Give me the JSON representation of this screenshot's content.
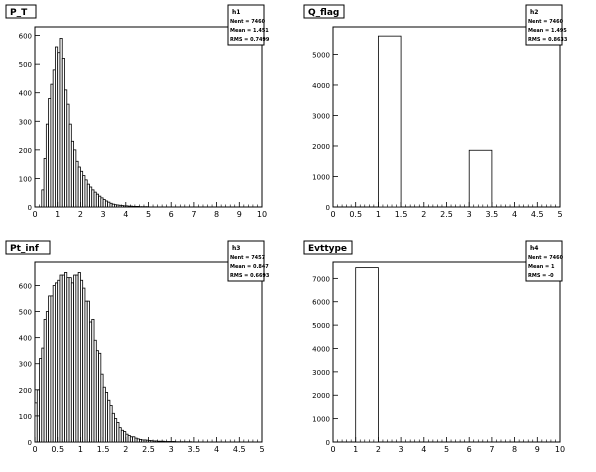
{
  "chart_data": [
    {
      "type": "bar",
      "histogram_style": "step",
      "title": "P_T",
      "xlim": [
        0,
        10
      ],
      "ylim": [
        0,
        630
      ],
      "x_tick_labels": [
        "0",
        "1",
        "2",
        "3",
        "4",
        "5",
        "6",
        "7",
        "8",
        "9",
        "10"
      ],
      "y_tick_labels": [
        "0",
        "100",
        "200",
        "300",
        "400",
        "500",
        "600"
      ],
      "stats": {
        "name": "h1",
        "entries_label": "Nent = 7460",
        "mean_label": "Mean = 1.451",
        "rms_label": "RMS = 0.7499"
      },
      "bin_width": 0.1,
      "x": [
        0.3,
        0.4,
        0.5,
        0.6,
        0.7,
        0.8,
        0.9,
        1.0,
        1.1,
        1.2,
        1.3,
        1.4,
        1.5,
        1.6,
        1.7,
        1.8,
        1.9,
        2.0,
        2.1,
        2.2,
        2.3,
        2.4,
        2.5,
        2.6,
        2.7,
        2.8,
        2.9,
        3.0,
        3.1,
        3.2,
        3.3,
        3.4,
        3.5,
        3.6,
        3.7,
        3.8,
        3.9,
        4.0,
        4.1,
        4.2,
        4.3,
        4.4,
        4.5,
        4.6,
        4.7,
        4.8,
        4.9
      ],
      "values": [
        60,
        170,
        290,
        380,
        430,
        480,
        560,
        540,
        590,
        520,
        410,
        360,
        290,
        230,
        200,
        160,
        140,
        125,
        110,
        95,
        80,
        70,
        60,
        52,
        45,
        38,
        32,
        26,
        21,
        17,
        13,
        10,
        8,
        7,
        6,
        5,
        4,
        4,
        3,
        3,
        2,
        2,
        2,
        1,
        1,
        1,
        1
      ]
    },
    {
      "type": "bar",
      "histogram_style": "step",
      "title": "Q_flag",
      "xlim": [
        0,
        5
      ],
      "ylim": [
        0,
        5900
      ],
      "x_tick_labels": [
        "0",
        "0.5",
        "1",
        "1.5",
        "2",
        "2.5",
        "3",
        "3.5",
        "4",
        "4.5",
        "5"
      ],
      "y_tick_labels": [
        "0",
        "1000",
        "2000",
        "3000",
        "4000",
        "5000"
      ],
      "stats": {
        "name": "h2",
        "entries_label": "Nent = 7460",
        "mean_label": "Mean = 1.495",
        "rms_label": "RMS = 0.8633"
      },
      "bin_width": 0.5,
      "x": [
        1.0,
        3.0
      ],
      "values": [
        5600,
        1860
      ]
    },
    {
      "type": "bar",
      "histogram_style": "step",
      "title": "Pt_inf",
      "xlim": [
        0,
        5
      ],
      "ylim": [
        0,
        690
      ],
      "x_tick_labels": [
        "0",
        "0.5",
        "1",
        "1.5",
        "2",
        "2.5",
        "3",
        "3.5",
        "4",
        "4.5",
        "5"
      ],
      "y_tick_labels": [
        "0",
        "100",
        "200",
        "300",
        "400",
        "500",
        "600"
      ],
      "stats": {
        "name": "h3",
        "entries_label": "Nent = 7457",
        "mean_label": "Mean = 0.847",
        "rms_label": "RMS = 0.6693"
      },
      "bin_width": 0.05,
      "x": [
        0.0,
        0.05,
        0.1,
        0.15,
        0.2,
        0.25,
        0.3,
        0.35,
        0.4,
        0.45,
        0.5,
        0.55,
        0.6,
        0.65,
        0.7,
        0.75,
        0.8,
        0.85,
        0.9,
        0.95,
        1.0,
        1.05,
        1.1,
        1.15,
        1.2,
        1.25,
        1.3,
        1.35,
        1.4,
        1.45,
        1.5,
        1.55,
        1.6,
        1.65,
        1.7,
        1.75,
        1.8,
        1.85,
        1.9,
        1.95,
        2.0,
        2.05,
        2.1,
        2.15,
        2.2,
        2.25,
        2.3,
        2.35,
        2.4,
        2.45,
        2.5,
        2.55,
        2.6,
        2.65,
        2.7,
        2.75,
        2.8,
        2.85,
        2.9,
        2.95,
        3.0,
        3.05,
        3.1,
        3.15,
        3.2,
        3.25,
        3.3,
        3.35,
        3.4
      ],
      "values": [
        150,
        200,
        320,
        360,
        470,
        500,
        560,
        560,
        600,
        610,
        620,
        640,
        640,
        650,
        630,
        630,
        610,
        640,
        640,
        650,
        620,
        590,
        540,
        540,
        460,
        470,
        390,
        350,
        340,
        260,
        210,
        190,
        160,
        140,
        110,
        90,
        75,
        55,
        45,
        40,
        30,
        25,
        20,
        20,
        15,
        12,
        10,
        8,
        8,
        7,
        6,
        5,
        4,
        4,
        3,
        3,
        3,
        2,
        2,
        2,
        2,
        2,
        1,
        1,
        1,
        1,
        1,
        1,
        1
      ]
    },
    {
      "type": "bar",
      "histogram_style": "step",
      "title": "Evttype",
      "xlim": [
        0,
        10
      ],
      "ylim": [
        0,
        7700
      ],
      "x_tick_labels": [
        "0",
        "1",
        "2",
        "3",
        "4",
        "5",
        "6",
        "7",
        "8",
        "9",
        "10"
      ],
      "y_tick_labels": [
        "0",
        "1000",
        "2000",
        "3000",
        "4000",
        "5000",
        "6000",
        "7000"
      ],
      "stats": {
        "name": "h4",
        "entries_label": "Nent = 7460",
        "mean_label": "Mean =  1",
        "rms_label": "RMS =  -0"
      },
      "bin_width": 1,
      "x": [
        1
      ],
      "values": [
        7460
      ]
    }
  ]
}
